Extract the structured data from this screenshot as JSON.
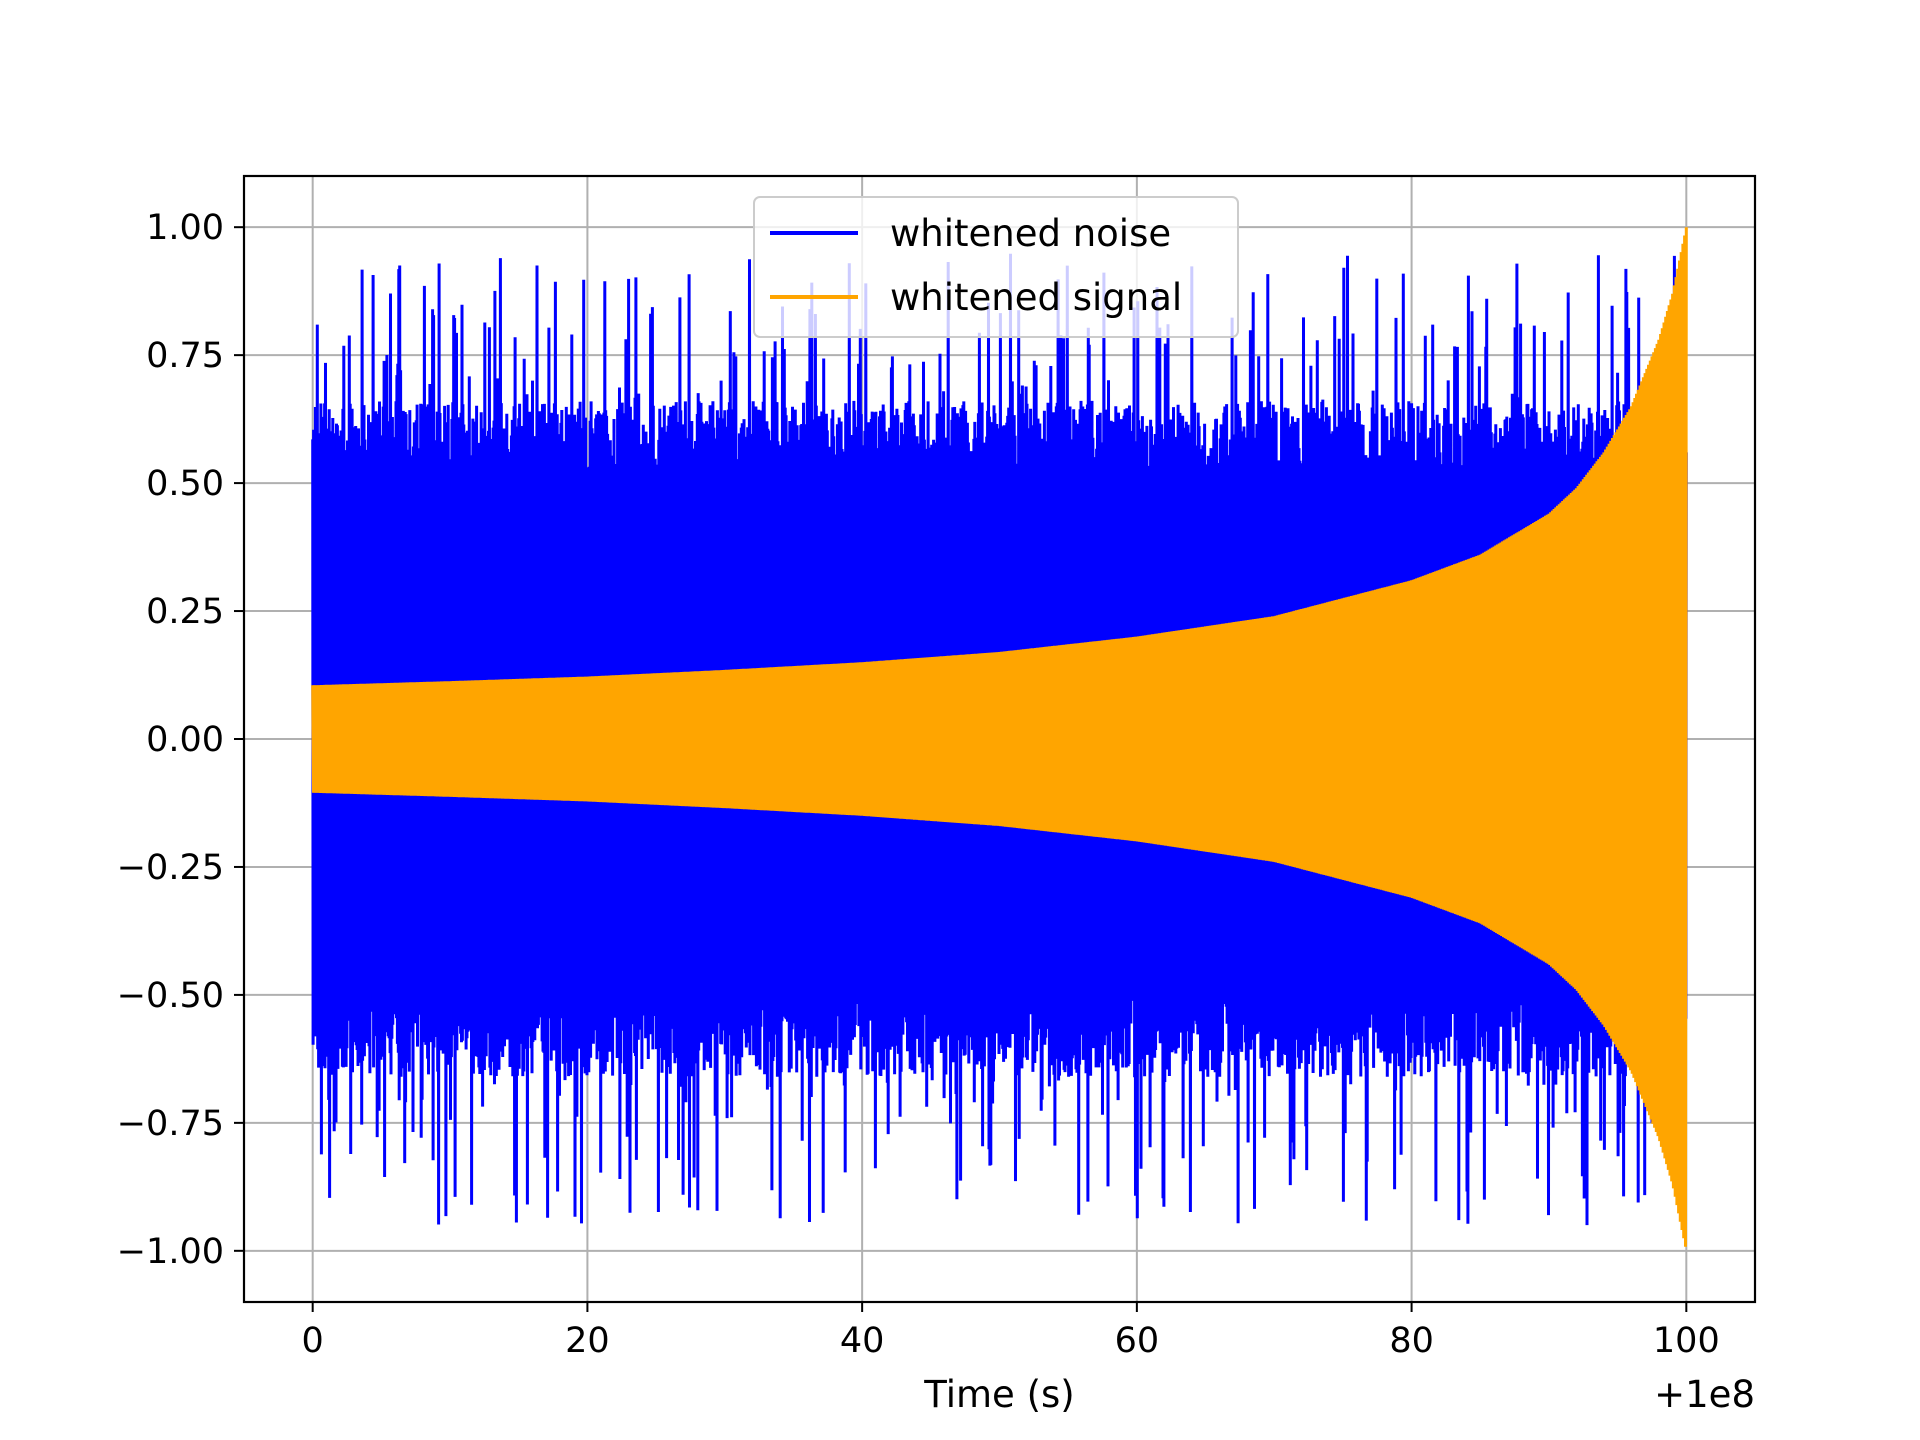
{
  "chart_data": {
    "type": "line",
    "title": "",
    "xlabel": "Time (s)",
    "ylabel": "",
    "x_offset_label": "+1e8",
    "xlim": [
      -5,
      105
    ],
    "ylim": [
      -1.1,
      1.1
    ],
    "xticks": [
      0,
      20,
      40,
      60,
      80,
      100
    ],
    "xtick_labels": [
      "0",
      "20",
      "40",
      "60",
      "80",
      "100"
    ],
    "yticks": [
      -1.0,
      -0.75,
      -0.5,
      -0.25,
      0.0,
      0.25,
      0.5,
      0.75,
      1.0
    ],
    "ytick_labels": [
      "−1.00",
      "−0.75",
      "−0.50",
      "−0.25",
      "0.00",
      "0.25",
      "0.50",
      "0.75",
      "1.00"
    ],
    "grid": true,
    "legend_position": "upper center",
    "series": [
      {
        "name": "whitened noise",
        "color": "#0000ff",
        "x_range": [
          0,
          100
        ],
        "typical_abs_min": 0.5,
        "typical_abs_max": 0.95
      },
      {
        "name": "whitened signal",
        "color": "#ffa500",
        "x_range": [
          0,
          100
        ],
        "envelope": {
          "x": [
            0,
            10,
            20,
            30,
            40,
            50,
            60,
            70,
            80,
            85,
            90,
            92,
            94,
            96,
            98,
            99,
            100
          ],
          "y": [
            0.105,
            0.113,
            0.122,
            0.135,
            0.15,
            0.17,
            0.2,
            0.24,
            0.31,
            0.36,
            0.44,
            0.49,
            0.56,
            0.65,
            0.78,
            0.87,
            1.0
          ]
        }
      }
    ]
  }
}
